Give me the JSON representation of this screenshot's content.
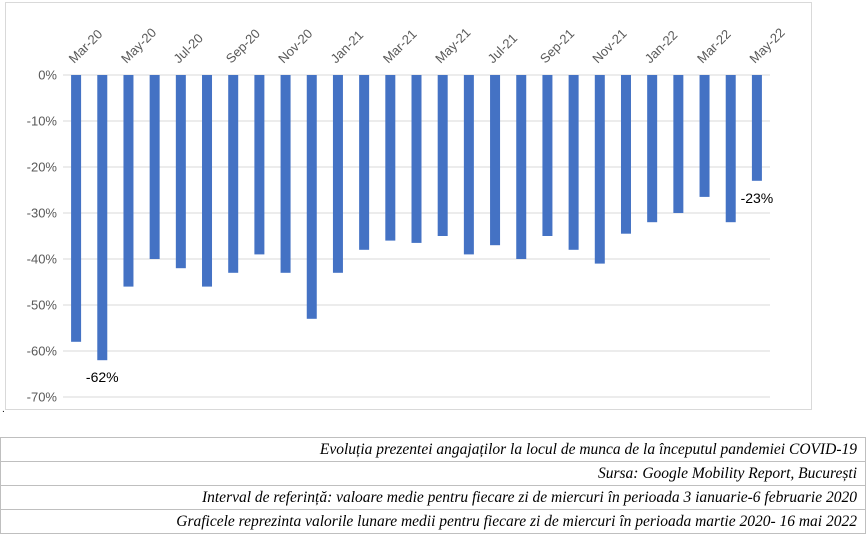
{
  "chart_data": {
    "type": "bar",
    "categories": [
      "Mar-20",
      "Apr-20",
      "May-20",
      "Jun-20",
      "Jul-20",
      "Aug-20",
      "Sep-20",
      "Oct-20",
      "Nov-20",
      "Dec-20",
      "Jan-21",
      "Feb-21",
      "Mar-21",
      "Apr-21",
      "May-21",
      "Jun-21",
      "Jul-21",
      "Aug-21",
      "Sep-21",
      "Oct-21",
      "Nov-21",
      "Dec-21",
      "Jan-22",
      "Feb-22",
      "Mar-22",
      "Apr-22",
      "May-22"
    ],
    "tick_labels": [
      "Mar-20",
      "May-20",
      "Jul-20",
      "Sep-20",
      "Nov-20",
      "Jan-21",
      "Mar-21",
      "May-21",
      "Jul-21",
      "Sep-21",
      "Nov-21",
      "Jan-22",
      "Mar-22",
      "May-22"
    ],
    "values": [
      -58,
      -62,
      -46,
      -40,
      -42,
      -46,
      -43,
      -39,
      -43,
      -53,
      -43,
      -38,
      -36,
      -36.5,
      -35,
      -39,
      -37,
      -40,
      -35,
      -38,
      -41,
      -34.5,
      -32,
      -30,
      -26.5,
      -32,
      -23
    ],
    "y_ticks": [
      "0%",
      "-10%",
      "-20%",
      "-30%",
      "-40%",
      "-50%",
      "-60%",
      "-70%"
    ],
    "ylim": [
      -70,
      0
    ],
    "data_labels": [
      {
        "category": "Apr-20",
        "text": "-62%"
      },
      {
        "category": "May-22",
        "text": "-23%"
      }
    ],
    "bar_color": "#4472c4",
    "grid": true
  },
  "caption": {
    "line1": "Evoluția prezentei angajaților la locul de munca de la începutul pandemiei COVID-19",
    "line2": "Sursa: Google Mobility Report, București",
    "line3": "Interval de referință: valoare medie pentru fiecare zi de miercuri în perioada 3 ianuarie-6 februarie 2020",
    "line4": "Graficele reprezinta valorile lunare medii pentru fiecare zi de miercuri în perioada martie 2020- 16 mai 2022"
  }
}
